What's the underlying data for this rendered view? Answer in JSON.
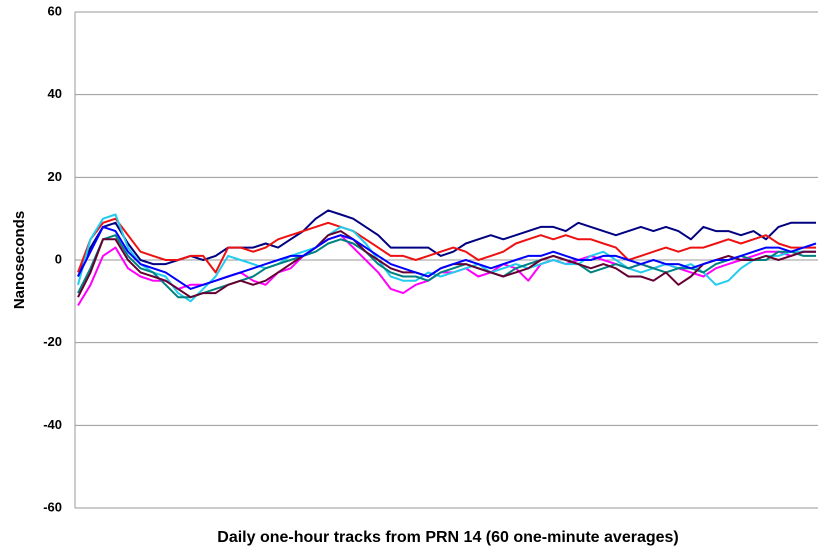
{
  "chart_data": {
    "type": "line",
    "y_label": "Nanoseconds",
    "x_label": "Daily one-hour tracks from PRN 14 (60 one-minute averages)",
    "ylim": [
      -60,
      60
    ],
    "yticks": [
      -60,
      -40,
      -20,
      0,
      20,
      40,
      60
    ],
    "grid": true,
    "series": [
      {
        "color": "#000080",
        "values": [
          -4,
          3,
          8,
          9,
          4,
          0,
          -1,
          -1,
          0,
          1,
          0,
          1,
          3,
          3,
          3,
          4,
          3,
          5,
          7,
          10,
          12,
          11,
          10,
          8,
          6,
          3,
          3,
          3,
          3,
          1,
          2,
          4,
          5,
          6,
          5,
          6,
          7,
          8,
          8,
          7,
          9,
          8,
          7,
          6,
          7,
          8,
          7,
          8,
          7,
          5,
          8,
          7,
          7,
          6,
          7,
          5,
          8,
          9,
          9,
          9
        ]
      },
      {
        "color": "#ee1111",
        "values": [
          -3,
          5,
          9,
          10,
          6,
          2,
          1,
          0,
          0,
          1,
          1,
          -3,
          3,
          3,
          2,
          3,
          5,
          6,
          7,
          8,
          9,
          8,
          7,
          5,
          3,
          1,
          1,
          0,
          1,
          2,
          3,
          2,
          0,
          1,
          2,
          4,
          5,
          6,
          5,
          6,
          5,
          5,
          4,
          3,
          0,
          1,
          2,
          3,
          2,
          3,
          3,
          4,
          5,
          4,
          5,
          6,
          4,
          3,
          3,
          3
        ]
      },
      {
        "color": "#ff00ff",
        "values": [
          -11,
          -6,
          1,
          3,
          -2,
          -4,
          -5,
          -5,
          -7,
          -6,
          -6,
          -5,
          -4,
          -3,
          -5,
          -6,
          -3,
          -2,
          1,
          3,
          5,
          6,
          3,
          0,
          -3,
          -7,
          -8,
          -6,
          -5,
          -3,
          -3,
          -2,
          -4,
          -3,
          -1,
          -2,
          -5,
          -1,
          0,
          -1,
          0,
          1,
          0,
          -1,
          -2,
          -1,
          -2,
          -1,
          -2,
          -3,
          -4,
          -2,
          -1,
          0,
          1,
          2,
          2,
          1,
          2,
          2
        ]
      },
      {
        "color": "#22ccee",
        "values": [
          -6,
          5,
          10,
          11,
          3,
          -1,
          -3,
          -4,
          -8,
          -10,
          -7,
          -4,
          1,
          0,
          -1,
          -2,
          -1,
          1,
          2,
          3,
          6,
          8,
          7,
          4,
          0,
          -4,
          -5,
          -5,
          -3,
          -4,
          -3,
          -2,
          -1,
          -3,
          -2,
          -1,
          -2,
          -1,
          0,
          -1,
          -1,
          1,
          2,
          0,
          -2,
          -3,
          -2,
          -1,
          -2,
          -1,
          -3,
          -6,
          -5,
          -2,
          0,
          1,
          1,
          2,
          2,
          2
        ]
      },
      {
        "color": "#008080",
        "values": [
          -8,
          -2,
          5,
          6,
          1,
          -2,
          -3,
          -6,
          -9,
          -9,
          -8,
          -7,
          -6,
          -5,
          -4,
          -2,
          -1,
          0,
          1,
          2,
          4,
          5,
          4,
          2,
          -1,
          -3,
          -4,
          -4,
          -5,
          -3,
          -2,
          -1,
          -2,
          -3,
          -4,
          -2,
          -1,
          0,
          1,
          0,
          -1,
          -3,
          -2,
          -1,
          -2,
          -1,
          -2,
          -3,
          -2,
          -2,
          -3,
          -1,
          0,
          1,
          0,
          0,
          2,
          2,
          1,
          1
        ]
      },
      {
        "color": "#660033",
        "values": [
          -9,
          -3,
          5,
          5,
          0,
          -3,
          -4,
          -5,
          -7,
          -9,
          -8,
          -8,
          -6,
          -5,
          -6,
          -5,
          -3,
          -1,
          1,
          3,
          6,
          7,
          5,
          2,
          0,
          -2,
          -3,
          -3,
          -4,
          -2,
          -1,
          -1,
          -2,
          -3,
          -4,
          -3,
          -2,
          0,
          1,
          0,
          -1,
          -2,
          -1,
          -2,
          -4,
          -4,
          -5,
          -3,
          -6,
          -4,
          -1,
          0,
          1,
          0,
          0,
          1,
          0,
          1,
          2,
          2
        ]
      },
      {
        "color": "#0000ff",
        "values": [
          -4,
          2,
          8,
          7,
          2,
          -1,
          -2,
          -3,
          -5,
          -7,
          -6,
          -5,
          -4,
          -3,
          -2,
          -1,
          0,
          1,
          1,
          3,
          5,
          6,
          5,
          3,
          1,
          -1,
          -2,
          -3,
          -4,
          -2,
          -1,
          0,
          -1,
          -2,
          -1,
          0,
          1,
          1,
          2,
          1,
          0,
          0,
          1,
          1,
          0,
          -1,
          0,
          -1,
          -1,
          -2,
          -1,
          0,
          0,
          1,
          2,
          3,
          3,
          2,
          3,
          4
        ]
      }
    ]
  }
}
